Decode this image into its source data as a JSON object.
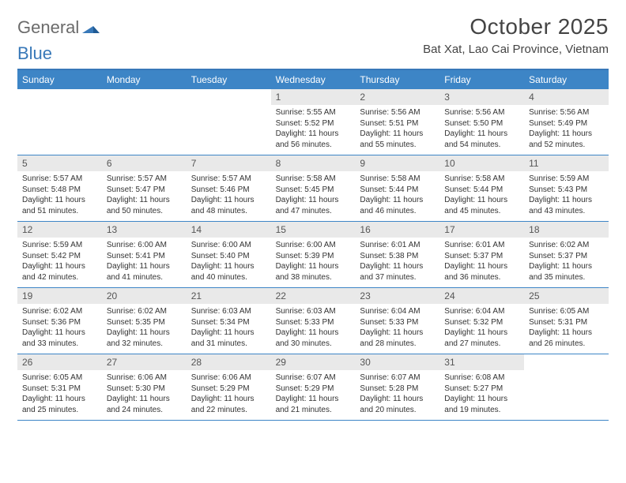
{
  "brand": {
    "part1": "General",
    "part2": "Blue"
  },
  "title": "October 2025",
  "location": "Bat Xat, Lao Cai Province, Vietnam",
  "colors": {
    "header_bar": "#3d85c6",
    "border": "#3878b8",
    "daynum_bg": "#e9e9e9",
    "text": "#333333",
    "logo_gray": "#6b6b6b"
  },
  "day_labels": [
    "Sunday",
    "Monday",
    "Tuesday",
    "Wednesday",
    "Thursday",
    "Friday",
    "Saturday"
  ],
  "weeks": [
    [
      {
        "n": "",
        "sr": "",
        "ss": "",
        "dl": ""
      },
      {
        "n": "",
        "sr": "",
        "ss": "",
        "dl": ""
      },
      {
        "n": "",
        "sr": "",
        "ss": "",
        "dl": ""
      },
      {
        "n": "1",
        "sr": "Sunrise: 5:55 AM",
        "ss": "Sunset: 5:52 PM",
        "dl": "Daylight: 11 hours and 56 minutes."
      },
      {
        "n": "2",
        "sr": "Sunrise: 5:56 AM",
        "ss": "Sunset: 5:51 PM",
        "dl": "Daylight: 11 hours and 55 minutes."
      },
      {
        "n": "3",
        "sr": "Sunrise: 5:56 AM",
        "ss": "Sunset: 5:50 PM",
        "dl": "Daylight: 11 hours and 54 minutes."
      },
      {
        "n": "4",
        "sr": "Sunrise: 5:56 AM",
        "ss": "Sunset: 5:49 PM",
        "dl": "Daylight: 11 hours and 52 minutes."
      }
    ],
    [
      {
        "n": "5",
        "sr": "Sunrise: 5:57 AM",
        "ss": "Sunset: 5:48 PM",
        "dl": "Daylight: 11 hours and 51 minutes."
      },
      {
        "n": "6",
        "sr": "Sunrise: 5:57 AM",
        "ss": "Sunset: 5:47 PM",
        "dl": "Daylight: 11 hours and 50 minutes."
      },
      {
        "n": "7",
        "sr": "Sunrise: 5:57 AM",
        "ss": "Sunset: 5:46 PM",
        "dl": "Daylight: 11 hours and 48 minutes."
      },
      {
        "n": "8",
        "sr": "Sunrise: 5:58 AM",
        "ss": "Sunset: 5:45 PM",
        "dl": "Daylight: 11 hours and 47 minutes."
      },
      {
        "n": "9",
        "sr": "Sunrise: 5:58 AM",
        "ss": "Sunset: 5:44 PM",
        "dl": "Daylight: 11 hours and 46 minutes."
      },
      {
        "n": "10",
        "sr": "Sunrise: 5:58 AM",
        "ss": "Sunset: 5:44 PM",
        "dl": "Daylight: 11 hours and 45 minutes."
      },
      {
        "n": "11",
        "sr": "Sunrise: 5:59 AM",
        "ss": "Sunset: 5:43 PM",
        "dl": "Daylight: 11 hours and 43 minutes."
      }
    ],
    [
      {
        "n": "12",
        "sr": "Sunrise: 5:59 AM",
        "ss": "Sunset: 5:42 PM",
        "dl": "Daylight: 11 hours and 42 minutes."
      },
      {
        "n": "13",
        "sr": "Sunrise: 6:00 AM",
        "ss": "Sunset: 5:41 PM",
        "dl": "Daylight: 11 hours and 41 minutes."
      },
      {
        "n": "14",
        "sr": "Sunrise: 6:00 AM",
        "ss": "Sunset: 5:40 PM",
        "dl": "Daylight: 11 hours and 40 minutes."
      },
      {
        "n": "15",
        "sr": "Sunrise: 6:00 AM",
        "ss": "Sunset: 5:39 PM",
        "dl": "Daylight: 11 hours and 38 minutes."
      },
      {
        "n": "16",
        "sr": "Sunrise: 6:01 AM",
        "ss": "Sunset: 5:38 PM",
        "dl": "Daylight: 11 hours and 37 minutes."
      },
      {
        "n": "17",
        "sr": "Sunrise: 6:01 AM",
        "ss": "Sunset: 5:37 PM",
        "dl": "Daylight: 11 hours and 36 minutes."
      },
      {
        "n": "18",
        "sr": "Sunrise: 6:02 AM",
        "ss": "Sunset: 5:37 PM",
        "dl": "Daylight: 11 hours and 35 minutes."
      }
    ],
    [
      {
        "n": "19",
        "sr": "Sunrise: 6:02 AM",
        "ss": "Sunset: 5:36 PM",
        "dl": "Daylight: 11 hours and 33 minutes."
      },
      {
        "n": "20",
        "sr": "Sunrise: 6:02 AM",
        "ss": "Sunset: 5:35 PM",
        "dl": "Daylight: 11 hours and 32 minutes."
      },
      {
        "n": "21",
        "sr": "Sunrise: 6:03 AM",
        "ss": "Sunset: 5:34 PM",
        "dl": "Daylight: 11 hours and 31 minutes."
      },
      {
        "n": "22",
        "sr": "Sunrise: 6:03 AM",
        "ss": "Sunset: 5:33 PM",
        "dl": "Daylight: 11 hours and 30 minutes."
      },
      {
        "n": "23",
        "sr": "Sunrise: 6:04 AM",
        "ss": "Sunset: 5:33 PM",
        "dl": "Daylight: 11 hours and 28 minutes."
      },
      {
        "n": "24",
        "sr": "Sunrise: 6:04 AM",
        "ss": "Sunset: 5:32 PM",
        "dl": "Daylight: 11 hours and 27 minutes."
      },
      {
        "n": "25",
        "sr": "Sunrise: 6:05 AM",
        "ss": "Sunset: 5:31 PM",
        "dl": "Daylight: 11 hours and 26 minutes."
      }
    ],
    [
      {
        "n": "26",
        "sr": "Sunrise: 6:05 AM",
        "ss": "Sunset: 5:31 PM",
        "dl": "Daylight: 11 hours and 25 minutes."
      },
      {
        "n": "27",
        "sr": "Sunrise: 6:06 AM",
        "ss": "Sunset: 5:30 PM",
        "dl": "Daylight: 11 hours and 24 minutes."
      },
      {
        "n": "28",
        "sr": "Sunrise: 6:06 AM",
        "ss": "Sunset: 5:29 PM",
        "dl": "Daylight: 11 hours and 22 minutes."
      },
      {
        "n": "29",
        "sr": "Sunrise: 6:07 AM",
        "ss": "Sunset: 5:29 PM",
        "dl": "Daylight: 11 hours and 21 minutes."
      },
      {
        "n": "30",
        "sr": "Sunrise: 6:07 AM",
        "ss": "Sunset: 5:28 PM",
        "dl": "Daylight: 11 hours and 20 minutes."
      },
      {
        "n": "31",
        "sr": "Sunrise: 6:08 AM",
        "ss": "Sunset: 5:27 PM",
        "dl": "Daylight: 11 hours and 19 minutes."
      },
      {
        "n": "",
        "sr": "",
        "ss": "",
        "dl": ""
      }
    ]
  ]
}
